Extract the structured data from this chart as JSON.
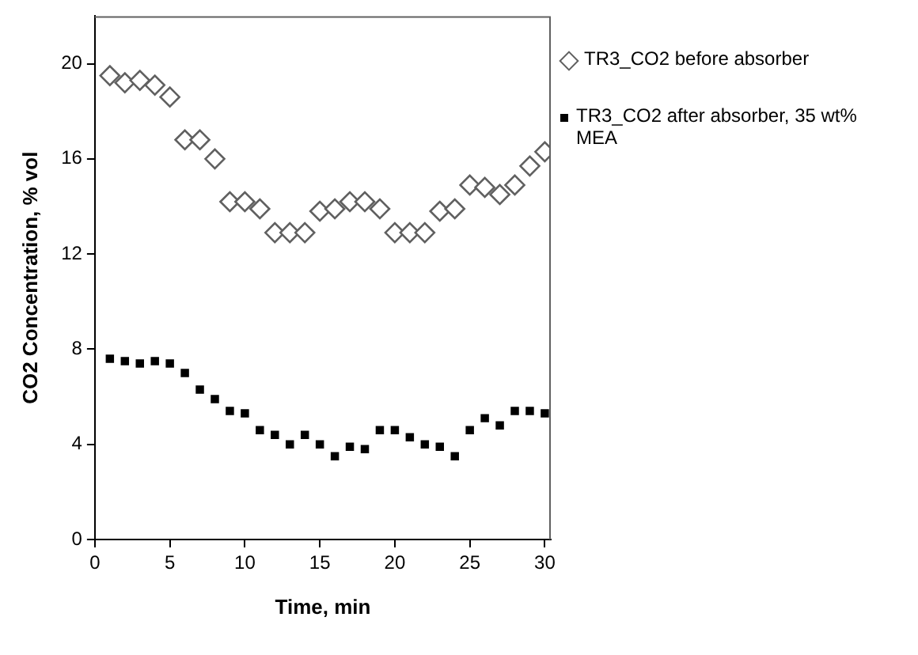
{
  "chart_data": {
    "type": "scatter",
    "xlabel": "Time, min",
    "ylabel": "CO2 Concentration, % vol",
    "xlim": [
      0,
      30.4
    ],
    "ylim": [
      0,
      22
    ],
    "xticks": [
      0,
      5,
      10,
      15,
      20,
      25,
      30
    ],
    "yticks": [
      0,
      4,
      8,
      12,
      16,
      20
    ],
    "grid": false,
    "legend": "right",
    "x": [
      1,
      2,
      3,
      4,
      5,
      6,
      7,
      8,
      9,
      10,
      11,
      12,
      13,
      14,
      15,
      16,
      17,
      18,
      19,
      20,
      21,
      22,
      23,
      24,
      25,
      26,
      27,
      28,
      29,
      30
    ],
    "series": [
      {
        "name": "TR3_CO2 before absorber",
        "color": "#606060",
        "marker": "diamond",
        "values": [
          19.5,
          19.2,
          19.3,
          19.1,
          18.6,
          16.8,
          16.8,
          16.0,
          14.2,
          14.2,
          13.9,
          12.9,
          12.9,
          12.9,
          13.8,
          13.9,
          14.2,
          14.2,
          13.9,
          12.9,
          12.9,
          12.9,
          13.8,
          13.9,
          14.9,
          14.8,
          14.5,
          14.9,
          15.7,
          16.3
        ]
      },
      {
        "name": "TR3_CO2 after absorber, 35 wt% MEA",
        "color": "#000000",
        "marker": "square",
        "values": [
          7.6,
          7.5,
          7.4,
          7.5,
          7.4,
          7.0,
          6.3,
          5.9,
          5.4,
          5.3,
          4.6,
          4.4,
          4.0,
          4.4,
          4.0,
          3.5,
          3.9,
          3.8,
          4.6,
          4.6,
          4.3,
          4.0,
          3.9,
          3.5,
          4.6,
          5.1,
          4.8,
          5.4,
          5.4,
          5.3
        ]
      }
    ]
  }
}
